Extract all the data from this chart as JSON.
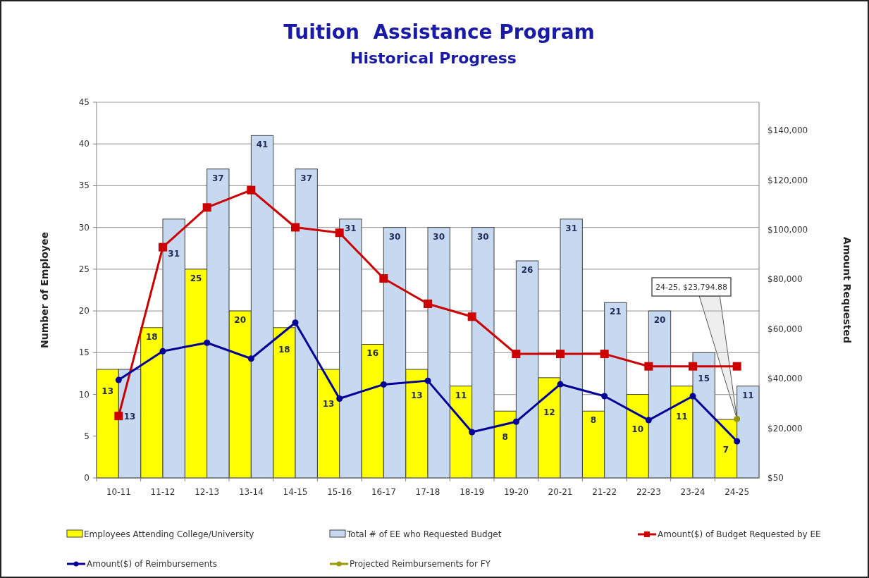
{
  "chart_data": {
    "type": "bar",
    "title": "Tuition  Assistance Program",
    "subtitle": "Historical Progress",
    "ylabel": "Number of Employee",
    "y2label": "Amount Requested",
    "categories": [
      "10-11",
      "11-12",
      "12-13",
      "13-14",
      "14-15",
      "15-16",
      "16-17",
      "17-18",
      "18-19",
      "19-20",
      "20-21",
      "21-22",
      "22-23",
      "23-24",
      "24-25"
    ],
    "series": [
      {
        "name": "Employees Attending College/University",
        "color": "#ffff00",
        "values": [
          13,
          18,
          25,
          20,
          18,
          13,
          16,
          13,
          11,
          8,
          12,
          8,
          10,
          11,
          7
        ],
        "value_labels": [
          "13",
          "18",
          "25",
          "20",
          "18",
          "13",
          "16",
          "13",
          "11",
          "8",
          "12",
          "8",
          "10",
          "11",
          "7"
        ]
      },
      {
        "name": "Total # of EE who Requested Budget",
        "color": "#c6d9f1",
        "values": [
          13,
          31,
          37,
          41,
          37,
          31,
          30,
          30,
          30,
          26,
          31,
          21,
          20,
          15,
          11
        ],
        "value_labels": [
          "13",
          "31",
          "37",
          "41",
          "37",
          "31",
          "30",
          "30",
          "30",
          "26",
          "31",
          "21",
          "20",
          "15",
          "11"
        ]
      },
      {
        "name": "Amount($) of Budget Requested by EE",
        "type": "line",
        "axis": "y2",
        "marker": "square",
        "color": "#cc0000",
        "values": [
          25000,
          93000,
          109000,
          116000,
          101000,
          98800,
          80400,
          70200,
          65000,
          50000,
          50000,
          50000,
          45000,
          45000,
          45000
        ]
      },
      {
        "name": "Amount($) of Reimbursements",
        "type": "line",
        "axis": "y2",
        "marker": "circle",
        "color": "#000099",
        "values": [
          39500,
          51100,
          54500,
          48100,
          62600,
          32000,
          37700,
          39200,
          18500,
          22700,
          37800,
          33000,
          23300,
          33000,
          14800
        ]
      },
      {
        "name": "Projected Reimbursements for FY",
        "type": "line",
        "axis": "y2",
        "marker": "circle",
        "color": "#999900",
        "values": [
          null,
          null,
          null,
          null,
          null,
          null,
          null,
          null,
          null,
          null,
          null,
          null,
          null,
          null,
          23794.88
        ]
      }
    ],
    "ylim": [
      0,
      45
    ],
    "yticks": [
      0,
      5,
      10,
      15,
      20,
      25,
      30,
      35,
      40,
      45
    ],
    "y2lim": [
      50,
      151400
    ],
    "y2ticks": [
      {
        "value": 50,
        "label": "$50"
      },
      {
        "value": 20000,
        "label": "$20,000"
      },
      {
        "value": 40000,
        "label": "$40,000"
      },
      {
        "value": 60000,
        "label": "$60,000"
      },
      {
        "value": 80000,
        "label": "$80,000"
      },
      {
        "value": 100000,
        "label": "$100,000"
      },
      {
        "value": 120000,
        "label": "$120,000"
      },
      {
        "value": 140000,
        "label": "$140,000"
      }
    ],
    "grid": "y",
    "legend": "bottom",
    "annotations": [
      "24-25, $23,794.88"
    ]
  }
}
